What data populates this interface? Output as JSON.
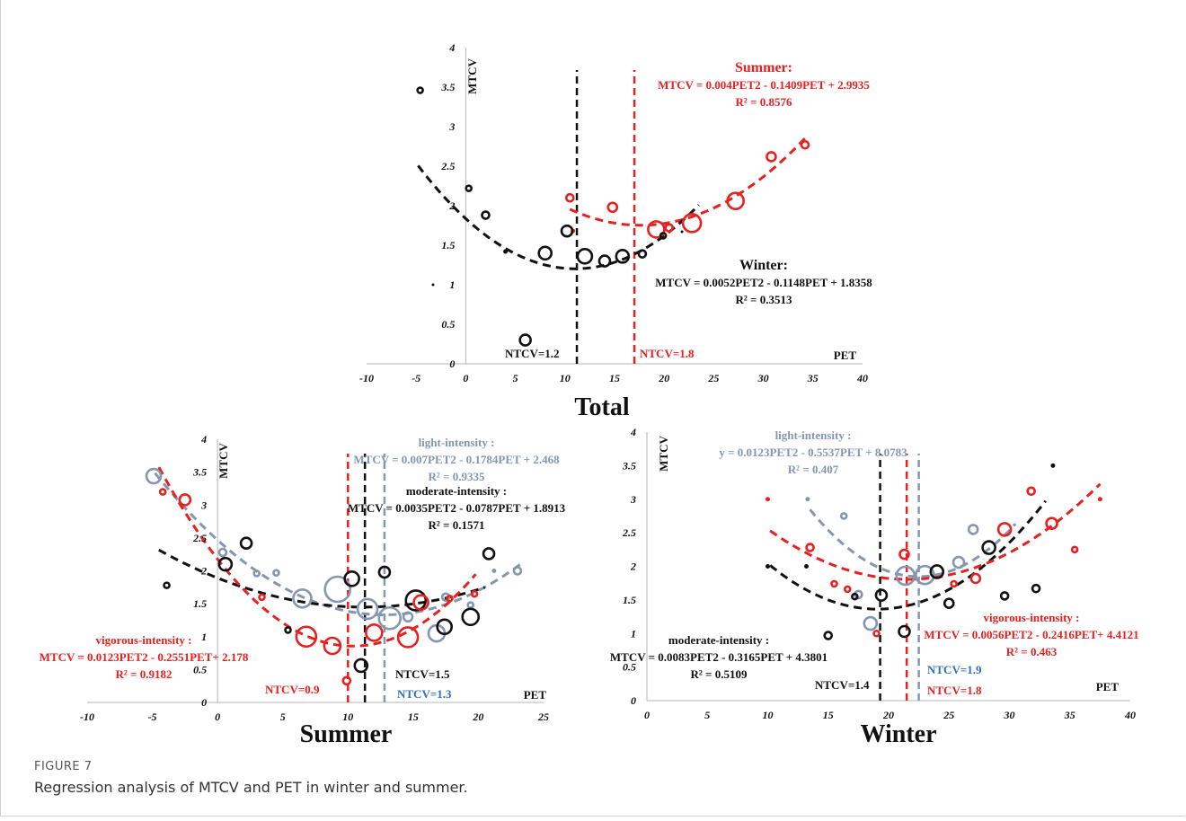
{
  "caption": {
    "label": "FIGURE 7",
    "text": "Regression analysis of MTCV and PET in winter and summer."
  },
  "chart_data": [
    {
      "type": "scatter",
      "title": "Total",
      "xlabel": "PET",
      "ylabel": "MTCV",
      "xlim": [
        -10,
        40
      ],
      "ylim": [
        0,
        4
      ],
      "xticks": [
        "-10",
        "-5",
        "0",
        "5",
        "10",
        "15",
        "20",
        "25",
        "30",
        "35",
        "40"
      ],
      "yticks": [
        "0",
        "0.5",
        "1",
        "1.5",
        "2",
        "2.5",
        "3",
        "3.5",
        "4"
      ],
      "series": [
        {
          "name": "Summer",
          "color": "#e8201f",
          "points": [
            [
              10.5,
              2.1,
              4
            ],
            [
              10.8,
              1.68,
              2
            ],
            [
              14.8,
              1.98,
              5
            ],
            [
              19.2,
              1.7,
              9
            ],
            [
              20.5,
              1.72,
              4
            ],
            [
              22.8,
              1.78,
              10
            ],
            [
              27.2,
              2.06,
              9
            ],
            [
              30.8,
              2.62,
              5
            ],
            [
              34.2,
              2.77,
              4
            ]
          ],
          "fit": {
            "a": 0.004,
            "b": -0.1409,
            "c": 2.9935,
            "range": [
              10.5,
              34.5
            ]
          },
          "equation_lines": [
            "Summer:",
            "MTCV = 0.004PET2 - 0.1409PET + 2.9935",
            "R² = 0.8576"
          ],
          "ntcv": {
            "x": 17,
            "label": "NTCV=1.8"
          }
        },
        {
          "name": "Winter",
          "color": "#111111",
          "points": [
            [
              -4.6,
              3.46,
              3
            ],
            [
              -3.3,
              1.0,
              1
            ],
            [
              0.3,
              2.22,
              3
            ],
            [
              2.0,
              1.88,
              4
            ],
            [
              4.0,
              1.42,
              2
            ],
            [
              6.0,
              0.3,
              6
            ],
            [
              8.0,
              1.4,
              7
            ],
            [
              10.2,
              1.68,
              6
            ],
            [
              12.0,
              1.36,
              8
            ],
            [
              14.0,
              1.3,
              6
            ],
            [
              15.8,
              1.36,
              7
            ],
            [
              17.8,
              1.39,
              4
            ],
            [
              19.9,
              1.62,
              3
            ],
            [
              21.8,
              1.67,
              1
            ]
          ],
          "fit": {
            "a": 0.0052,
            "b": -0.1148,
            "c": 1.8358,
            "range": [
              -4.8,
              23.5
            ]
          },
          "equation_lines": [
            "Winter:",
            "MTCV = 0.0052PET2 - 0.1148PET + 1.8358",
            "R² = 0.3513"
          ],
          "ntcv": {
            "x": 11.2,
            "label": "NTCV=1.2"
          }
        }
      ]
    },
    {
      "type": "scatter",
      "title": "Summer",
      "xlabel": "PET",
      "ylabel": "MTCV",
      "xlim": [
        -10,
        25
      ],
      "ylim": [
        0,
        4
      ],
      "xticks": [
        "-10",
        "-5",
        "0",
        "5",
        "10",
        "15",
        "20",
        "25"
      ],
      "yticks": [
        "0",
        "0.5",
        "1",
        "1.5",
        "2",
        "2.5",
        "3",
        "3.5",
        "4"
      ],
      "series": [
        {
          "name": "light-intensity",
          "color": "#8496b0",
          "points": [
            [
              -4.9,
              3.44,
              8
            ],
            [
              0.4,
              2.28,
              4
            ],
            [
              3.0,
              1.96,
              3
            ],
            [
              4.5,
              1.97,
              3
            ],
            [
              6.5,
              1.58,
              10
            ],
            [
              9.2,
              1.72,
              14
            ],
            [
              11.5,
              1.42,
              11
            ],
            [
              13.2,
              1.28,
              12
            ],
            [
              14.6,
              1.3,
              5
            ],
            [
              16.8,
              1.05,
              9
            ],
            [
              17.5,
              1.6,
              4
            ],
            [
              19.4,
              1.48,
              3
            ],
            [
              21.2,
              2.0,
              2
            ],
            [
              23.0,
              2.0,
              4
            ]
          ],
          "fit": {
            "a": 0.007,
            "b": -0.1784,
            "c": 2.468,
            "range": [
              -4.8,
              23.3
            ]
          },
          "equation_lines": [
            "light-intensity :",
            "MTCV = 0.007PET2 - 0.1784PET + 2.468",
            "R² = 0.9335"
          ],
          "ntcv": {
            "x": 12.8,
            "label": "NTCV=1.3"
          }
        },
        {
          "name": "moderate-intensity",
          "color": "#111111",
          "points": [
            [
              -3.9,
              1.78,
              3
            ],
            [
              0.6,
              2.1,
              7
            ],
            [
              2.2,
              2.42,
              6
            ],
            [
              5.4,
              1.1,
              3
            ],
            [
              10.3,
              1.88,
              8
            ],
            [
              11.0,
              0.56,
              7
            ],
            [
              12.8,
              1.98,
              6
            ],
            [
              15.2,
              1.55,
              11
            ],
            [
              17.4,
              1.15,
              8
            ],
            [
              19.4,
              1.3,
              9
            ],
            [
              20.8,
              2.26,
              6
            ]
          ],
          "fit": {
            "a": 0.0035,
            "b": -0.0787,
            "c": 1.8913,
            "range": [
              -4.5,
              20.5
            ]
          },
          "equation_lines": [
            "moderate-intensity :",
            "MTCV = 0.0035PET2 - 0.0787PET + 1.8913",
            "R² = 0.1571"
          ],
          "ntcv": {
            "x": 11.3,
            "label": "NTCV=1.5"
          }
        },
        {
          "name": "vigorous-intensity",
          "color": "#e8201f",
          "points": [
            [
              -4.2,
              3.2,
              3
            ],
            [
              -2.5,
              3.08,
              6
            ],
            [
              3.4,
              1.6,
              3
            ],
            [
              6.8,
              1.0,
              11
            ],
            [
              8.8,
              0.86,
              9
            ],
            [
              9.9,
              0.33,
              4
            ],
            [
              12.0,
              1.06,
              9
            ],
            [
              14.6,
              0.99,
              11
            ],
            [
              15.6,
              1.52,
              8
            ],
            [
              17.8,
              1.58,
              3
            ],
            [
              19.7,
              1.65,
              3
            ]
          ],
          "fit": {
            "a": 0.0123,
            "b": -0.2551,
            "c": 2.178,
            "range": [
              -4.5,
              19.8
            ]
          },
          "equation_lines": [
            "vigorous-intensity :",
            "MTCV = 0.0123PET2 - 0.2551PET+ 2.178",
            "R² = 0.9182"
          ],
          "ntcv": {
            "x": 10,
            "label": "NTCV=0.9"
          }
        }
      ]
    },
    {
      "type": "scatter",
      "title": "Winter",
      "xlabel": "PET",
      "ylabel": "MTCV",
      "xlim": [
        0,
        40
      ],
      "ylim": [
        0,
        4
      ],
      "xticks": [
        "0",
        "5",
        "10",
        "15",
        "20",
        "25",
        "30",
        "35",
        "40"
      ],
      "yticks": [
        "0",
        "0.5",
        "1",
        "1.5",
        "2",
        "2.5",
        "3",
        "3.5",
        "4"
      ],
      "series": [
        {
          "name": "light-intensity",
          "color": "#8496b0",
          "points": [
            [
              13.3,
              3.0,
              2
            ],
            [
              16.3,
              2.75,
              3
            ],
            [
              17.5,
              1.58,
              4
            ],
            [
              18.5,
              1.15,
              7
            ],
            [
              21.4,
              1.86,
              10
            ],
            [
              23.0,
              1.87,
              10
            ],
            [
              25.8,
              2.06,
              6
            ],
            [
              27.0,
              2.55,
              5
            ]
          ],
          "fit": {
            "a": 0.0123,
            "b": -0.5537,
            "c": 8.0783,
            "range": [
              13.5,
              30.5
            ]
          },
          "equation_lines": [
            "light-intensity :",
            "y = 0.0123PET2 - 0.5537PET + 8.0783",
            "R² = 0.407"
          ],
          "ntcv": {
            "x": 22.5,
            "label": "NTCV=1.9"
          }
        },
        {
          "name": "moderate-intensity",
          "color": "#111111",
          "points": [
            [
              10.0,
              2.0,
              2
            ],
            [
              13.2,
              2.0,
              2
            ],
            [
              15.0,
              0.97,
              4
            ],
            [
              17.2,
              1.55,
              3
            ],
            [
              19.4,
              1.57,
              6
            ],
            [
              21.3,
              1.03,
              6
            ],
            [
              24.0,
              1.92,
              7
            ],
            [
              25.0,
              1.45,
              5
            ],
            [
              28.3,
              2.28,
              7
            ],
            [
              29.6,
              1.56,
              4
            ],
            [
              32.2,
              1.67,
              4
            ],
            [
              33.6,
              3.5,
              2
            ]
          ],
          "fit": {
            "a": 0.0083,
            "b": -0.3165,
            "c": 4.3801,
            "range": [
              10.2,
              33
            ]
          },
          "equation_lines": [
            "moderate-intensity :",
            "MTCV = 0.0083PET2 - 0.3165PET + 4.3801",
            "R² = 0.5109"
          ],
          "ntcv": {
            "x": 19.3,
            "label": "NTCV=1.4"
          }
        },
        {
          "name": "vigorous-intensity",
          "color": "#e8201f",
          "points": [
            [
              10.0,
              3.0,
              2
            ],
            [
              13.5,
              2.28,
              4
            ],
            [
              15.5,
              1.74,
              3
            ],
            [
              16.6,
              1.66,
              3
            ],
            [
              19.0,
              1.0,
              3
            ],
            [
              21.3,
              2.18,
              5
            ],
            [
              25.4,
              1.74,
              3
            ],
            [
              27.2,
              1.82,
              5
            ],
            [
              29.6,
              2.55,
              7
            ],
            [
              31.8,
              3.12,
              4
            ],
            [
              33.5,
              2.64,
              6
            ],
            [
              35.4,
              2.25,
              3
            ],
            [
              37.5,
              3.0,
              2
            ]
          ],
          "fit": {
            "a": 0.0056,
            "b": -0.2416,
            "c": 4.4121,
            "range": [
              10.2,
              37.5
            ]
          },
          "equation_lines": [
            "vigorous-intensity :",
            "MTCV = 0.0056PET2 - 0.2416PET+ 4.4121",
            "R² = 0.463"
          ],
          "ntcv": {
            "x": 21.5,
            "label": "NTCV=1.8"
          }
        }
      ]
    }
  ]
}
